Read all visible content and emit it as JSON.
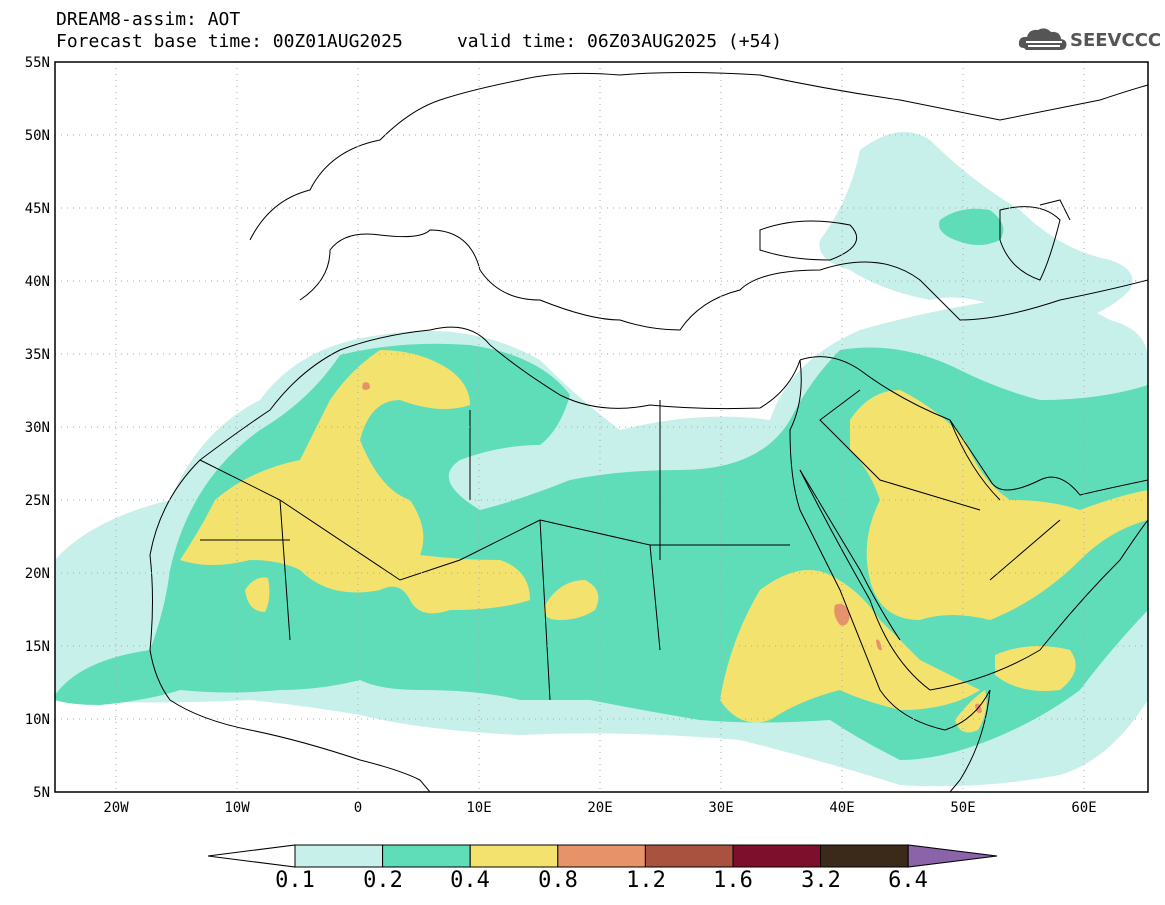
{
  "header": {
    "title_line1": "DREAM8-assim: AOT",
    "title_line2": "Forecast base time: 00Z01AUG2025     valid time: 06Z03AUG2025 (+54)"
  },
  "logo": {
    "text": "SEEVCCC",
    "icon": "cloud-icon"
  },
  "map": {
    "lat_labels": [
      "55N",
      "50N",
      "45N",
      "40N",
      "35N",
      "30N",
      "25N",
      "20N",
      "15N",
      "10N",
      "5N"
    ],
    "lon_labels": [
      "20W",
      "10W",
      "0",
      "10E",
      "20E",
      "30E",
      "40E",
      "50E",
      "60E"
    ]
  },
  "colorbar": {
    "labels": [
      "0.1",
      "0.2",
      "0.4",
      "0.8",
      "1.2",
      "1.6",
      "3.2",
      "6.4"
    ],
    "colors": [
      "#c8f0ea",
      "#5fddb9",
      "#f3e36e",
      "#e8926a",
      "#a8523f",
      "#7e0f2c",
      "#3b2a1a",
      "#8a63a8"
    ]
  }
}
